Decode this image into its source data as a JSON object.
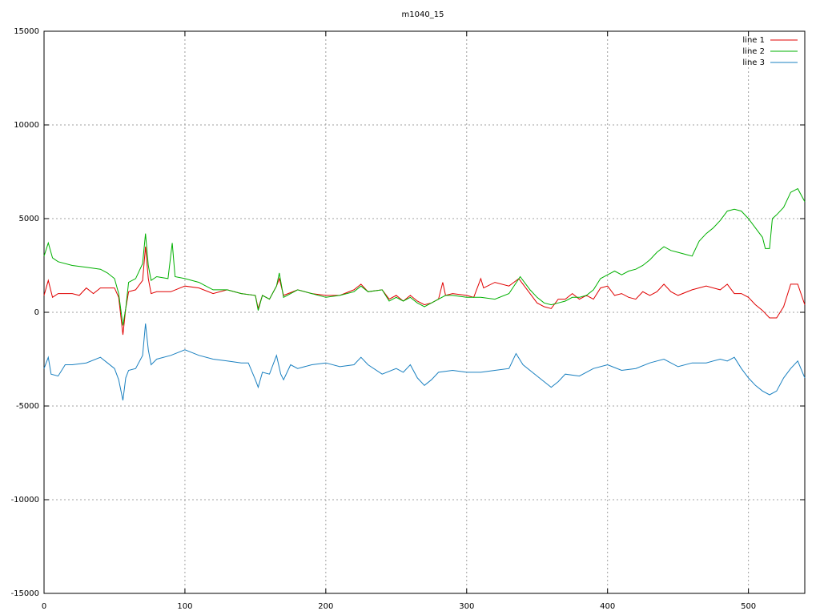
{
  "chart_data": {
    "type": "line",
    "title": "m1040_15",
    "xlim": [
      0,
      540
    ],
    "xticks": [
      0,
      100,
      200,
      300,
      400,
      500
    ],
    "ylim": [
      -15000,
      15000
    ],
    "yticks": [
      -15000,
      -10000,
      -5000,
      0,
      5000,
      10000,
      15000
    ],
    "grid": true,
    "legend": "top-right",
    "series": [
      {
        "name": "line 1",
        "color": "#e00000",
        "x": [
          0,
          3,
          6,
          10,
          20,
          25,
          30,
          35,
          40,
          45,
          50,
          53,
          56,
          58,
          60,
          65,
          70,
          72,
          74,
          76,
          80,
          90,
          100,
          110,
          120,
          130,
          140,
          150,
          152,
          155,
          160,
          165,
          167,
          170,
          180,
          190,
          200,
          210,
          220,
          225,
          230,
          240,
          245,
          250,
          255,
          260,
          265,
          270,
          275,
          280,
          283,
          285,
          290,
          300,
          305,
          310,
          312,
          320,
          330,
          337,
          340,
          345,
          350,
          355,
          360,
          365,
          370,
          375,
          380,
          385,
          390,
          395,
          400,
          405,
          410,
          415,
          420,
          425,
          430,
          435,
          440,
          445,
          450,
          460,
          470,
          480,
          485,
          490,
          495,
          500,
          505,
          510,
          515,
          520,
          525,
          530,
          535,
          540
        ],
        "values": [
          900,
          1700,
          800,
          1000,
          1000,
          900,
          1300,
          1000,
          1300,
          1300,
          1300,
          800,
          -1200,
          200,
          1100,
          1200,
          1700,
          3500,
          1800,
          1000,
          1100,
          1100,
          1400,
          1300,
          1000,
          1200,
          1000,
          900,
          200,
          900,
          700,
          1400,
          1800,
          900,
          1200,
          1000,
          900,
          900,
          1200,
          1500,
          1100,
          1200,
          700,
          900,
          600,
          900,
          600,
          400,
          500,
          700,
          1600,
          900,
          1000,
          900,
          800,
          1800,
          1300,
          1600,
          1400,
          1800,
          1500,
          1000,
          500,
          300,
          200,
          700,
          700,
          1000,
          700,
          900,
          700,
          1300,
          1400,
          900,
          1000,
          800,
          700,
          1100,
          900,
          1100,
          1500,
          1100,
          900,
          1200,
          1400,
          1200,
          1500,
          1000,
          1000,
          800,
          400,
          100,
          -300,
          -300,
          300,
          1500,
          1500,
          400
        ]
      },
      {
        "name": "line 2",
        "color": "#00b000",
        "x": [
          0,
          3,
          6,
          10,
          20,
          30,
          40,
          45,
          50,
          53,
          56,
          58,
          60,
          65,
          70,
          72,
          74,
          76,
          80,
          88,
          91,
          93,
          100,
          110,
          120,
          130,
          140,
          150,
          152,
          155,
          160,
          165,
          167,
          170,
          180,
          190,
          200,
          210,
          220,
          225,
          230,
          240,
          245,
          250,
          255,
          260,
          265,
          270,
          275,
          280,
          285,
          290,
          300,
          310,
          320,
          330,
          338,
          345,
          350,
          355,
          360,
          365,
          370,
          375,
          380,
          385,
          390,
          395,
          400,
          405,
          410,
          415,
          420,
          425,
          430,
          435,
          440,
          445,
          450,
          455,
          460,
          465,
          470,
          475,
          480,
          485,
          490,
          495,
          500,
          505,
          510,
          512,
          515,
          517,
          520,
          525,
          530,
          535,
          540
        ],
        "values": [
          3000,
          3700,
          2900,
          2700,
          2500,
          2400,
          2300,
          2100,
          1800,
          1000,
          -700,
          200,
          1600,
          1800,
          2600,
          4200,
          2500,
          1700,
          1900,
          1800,
          3700,
          1900,
          1800,
          1600,
          1200,
          1200,
          1000,
          900,
          100,
          900,
          700,
          1400,
          2100,
          800,
          1200,
          1000,
          800,
          900,
          1100,
          1400,
          1100,
          1200,
          600,
          800,
          600,
          800,
          500,
          300,
          500,
          700,
          900,
          900,
          800,
          800,
          700,
          1000,
          1900,
          1200,
          800,
          500,
          400,
          500,
          600,
          800,
          800,
          900,
          1200,
          1800,
          2000,
          2200,
          2000,
          2200,
          2300,
          2500,
          2800,
          3200,
          3500,
          3300,
          3200,
          3100,
          3000,
          3800,
          4200,
          4500,
          4900,
          5400,
          5500,
          5400,
          5000,
          4500,
          4000,
          3400,
          3400,
          5000,
          5200,
          5600,
          6400,
          6600,
          5900
        ]
      },
      {
        "name": "line 3",
        "color": "#1a80c0",
        "x": [
          0,
          3,
          5,
          10,
          15,
          20,
          30,
          40,
          45,
          50,
          53,
          56,
          58,
          60,
          65,
          70,
          72,
          74,
          76,
          80,
          90,
          100,
          110,
          120,
          130,
          140,
          145,
          150,
          152,
          155,
          160,
          165,
          168,
          170,
          175,
          180,
          190,
          200,
          210,
          220,
          225,
          230,
          240,
          250,
          255,
          260,
          265,
          270,
          275,
          280,
          290,
          300,
          310,
          320,
          330,
          335,
          340,
          350,
          355,
          360,
          365,
          370,
          380,
          390,
          400,
          410,
          420,
          430,
          435,
          440,
          450,
          460,
          470,
          480,
          485,
          490,
          495,
          500,
          505,
          510,
          515,
          520,
          525,
          530,
          535,
          540
        ],
        "values": [
          -3000,
          -2400,
          -3300,
          -3400,
          -2800,
          -2800,
          -2700,
          -2400,
          -2700,
          -3000,
          -3600,
          -4700,
          -3500,
          -3100,
          -3000,
          -2300,
          -600,
          -2000,
          -2800,
          -2500,
          -2300,
          -2000,
          -2300,
          -2500,
          -2600,
          -2700,
          -2700,
          -3600,
          -4000,
          -3200,
          -3300,
          -2300,
          -3300,
          -3600,
          -2800,
          -3000,
          -2800,
          -2700,
          -2900,
          -2800,
          -2400,
          -2800,
          -3300,
          -3000,
          -3200,
          -2800,
          -3500,
          -3900,
          -3600,
          -3200,
          -3100,
          -3200,
          -3200,
          -3100,
          -3000,
          -2200,
          -2800,
          -3400,
          -3700,
          -4000,
          -3700,
          -3300,
          -3400,
          -3000,
          -2800,
          -3100,
          -3000,
          -2700,
          -2600,
          -2500,
          -2900,
          -2700,
          -2700,
          -2500,
          -2600,
          -2400,
          -3000,
          -3500,
          -3900,
          -4200,
          -4400,
          -4200,
          -3500,
          -3000,
          -2600,
          -3500
        ]
      }
    ]
  }
}
